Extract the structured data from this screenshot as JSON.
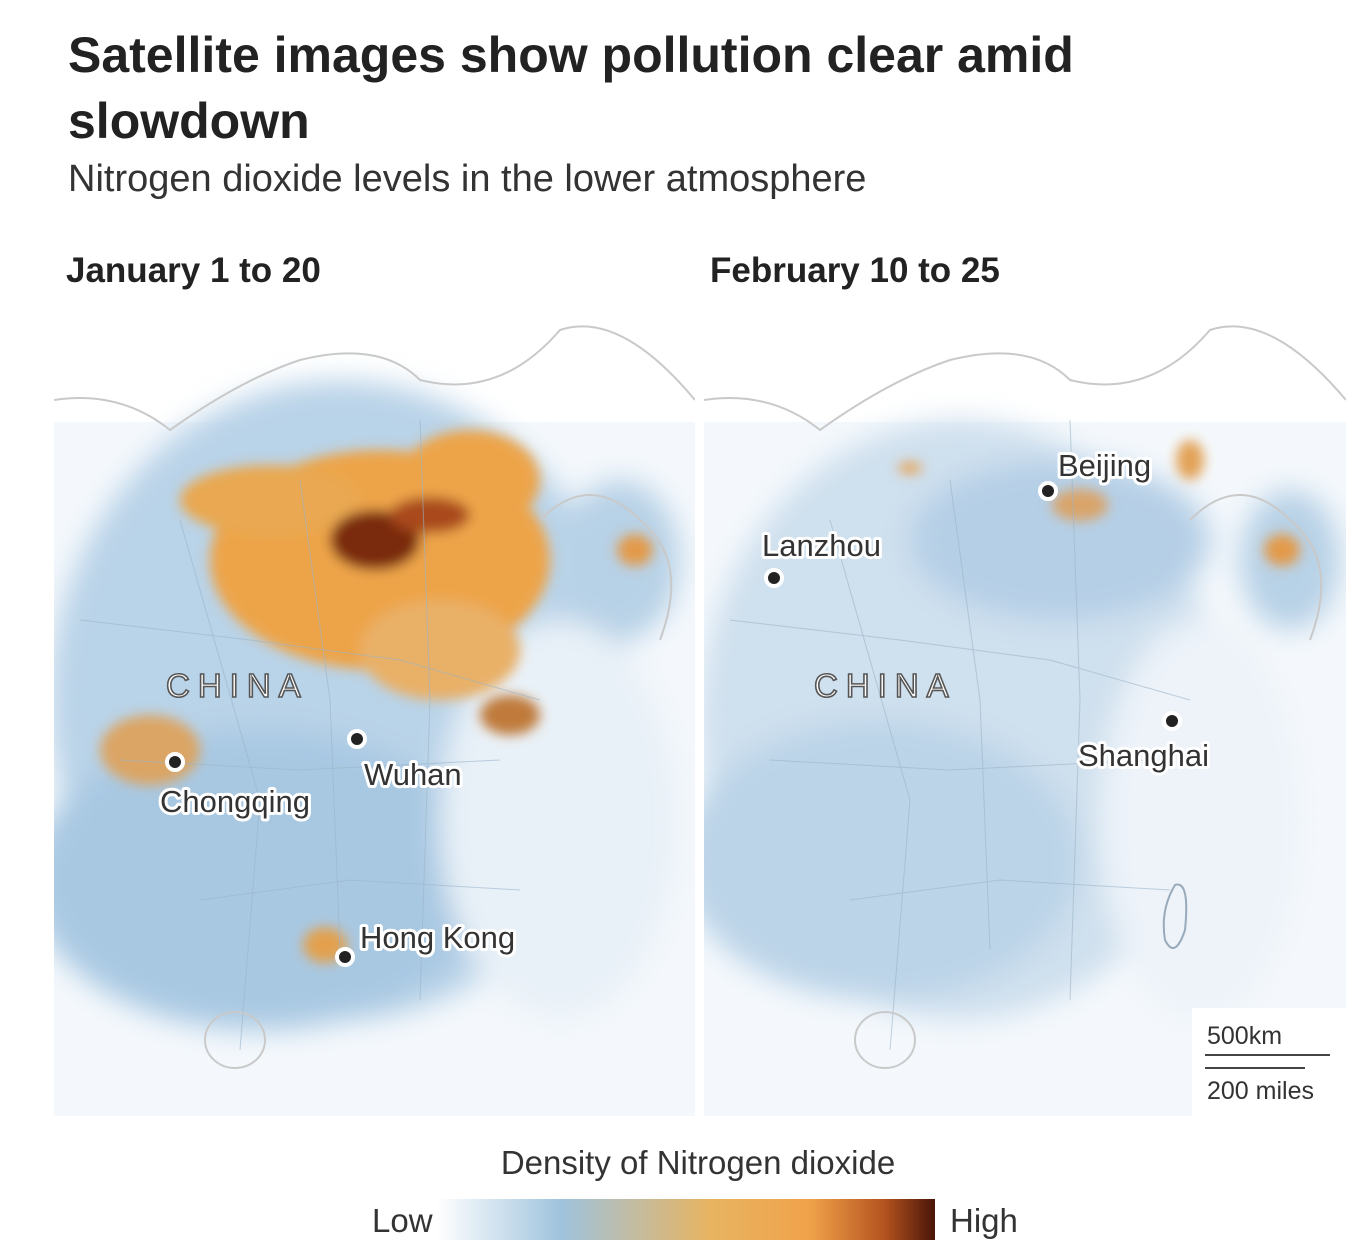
{
  "header": {
    "title": "Satellite images show pollution clear amid slowdown",
    "subtitle": "Nitrogen dioxide levels in the lower atmosphere"
  },
  "maps": [
    {
      "title": "January 1 to 20",
      "country": "CHINA",
      "cities": [
        "Chongqing",
        "Wuhan",
        "Hong Kong"
      ]
    },
    {
      "title": "February 10 to 25",
      "country": "CHINA",
      "cities": [
        "Beijing",
        "Lanzhou",
        "Shanghai"
      ]
    }
  ],
  "scale": {
    "km": "500km",
    "miles": "200 miles"
  },
  "legend": {
    "title": "Density of Nitrogen dioxide",
    "low": "Low",
    "high": "High"
  }
}
